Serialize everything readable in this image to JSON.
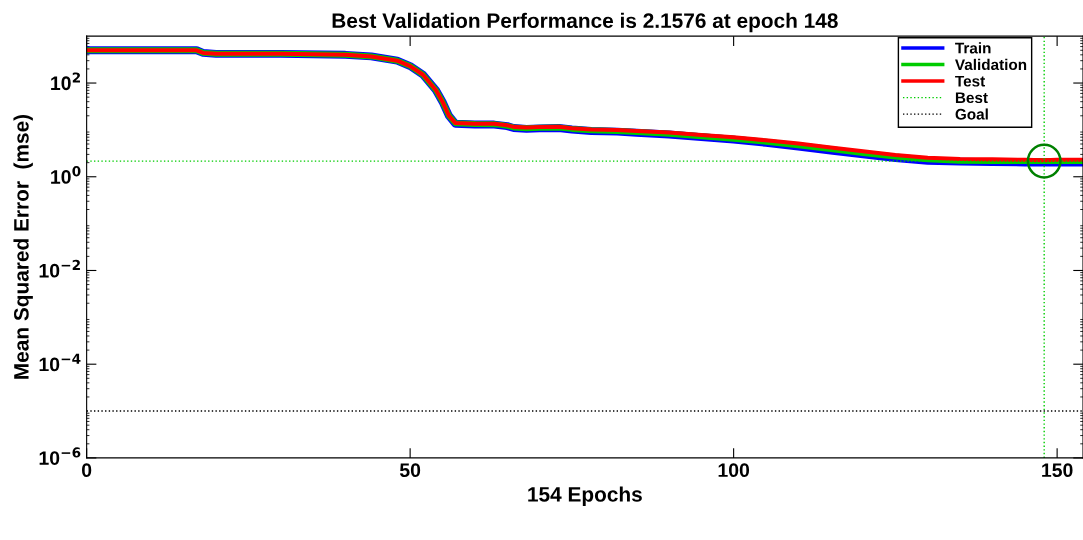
{
  "chart_data": {
    "type": "line",
    "title": "Best Validation Performance is 2.1576 at epoch 148",
    "xlabel": "154 Epochs",
    "ylabel": "Mean Squared Error  (mse)",
    "log": "y",
    "grid": false,
    "legend": "top right",
    "line_style": "solid",
    "marker": "none",
    "xlim": [
      0,
      154
    ],
    "ylim": [
      1e-06,
      1000
    ],
    "xticks": [
      0,
      50,
      100,
      150
    ],
    "yticks": [
      {
        "value": 1e-06,
        "label": "10$^{−6}$"
      },
      {
        "value": 0.0001,
        "label": "10$^{−4}$"
      },
      {
        "value": 0.01,
        "label": "10$^{−2}$"
      },
      {
        "value": 1,
        "label": "10$^{0}$"
      },
      {
        "value": 100,
        "label": "10$^{2}$"
      }
    ],
    "x": [
      0,
      17,
      18,
      20,
      30,
      40,
      44,
      48,
      50,
      52,
      54,
      55,
      56,
      57,
      60,
      63,
      64,
      65,
      66,
      68,
      70,
      73,
      75,
      78,
      82,
      85,
      90,
      95,
      100,
      105,
      110,
      115,
      120,
      125,
      130,
      135,
      140,
      145,
      148,
      150,
      154
    ],
    "series": [
      {
        "name": "Train",
        "color": "#0000ff",
        "values": [
          500,
          500,
          440,
          420,
          420,
          400,
          370,
          300,
          230,
          150,
          70,
          40,
          20,
          13.5,
          13,
          13,
          12.5,
          12,
          11,
          10.5,
          10.8,
          11,
          10.2,
          9.5,
          9.2,
          8.7,
          8,
          7,
          6.2,
          5.3,
          4.4,
          3.6,
          3,
          2.5,
          2.2,
          2.1,
          2.05,
          2.02,
          2.0,
          2.0,
          2.0
        ]
      },
      {
        "name": "Validation",
        "color": "#00cc00",
        "values": [
          500,
          500,
          440,
          420,
          420,
          400,
          370,
          300,
          230,
          150,
          70,
          40,
          20,
          13.8,
          13.3,
          13.2,
          12.8,
          12.2,
          11.3,
          10.8,
          11.1,
          11.3,
          10.5,
          9.8,
          9.5,
          9,
          8.3,
          7.3,
          6.5,
          5.6,
          4.7,
          3.9,
          3.2,
          2.7,
          2.35,
          2.2,
          2.17,
          2.16,
          2.1576,
          2.17,
          2.17
        ]
      },
      {
        "name": "Test",
        "color": "#ff0000",
        "values": [
          500,
          500,
          440,
          420,
          420,
          400,
          370,
          300,
          230,
          150,
          70,
          40,
          20,
          14,
          13.6,
          13.5,
          13,
          12.5,
          11.6,
          11.2,
          11.5,
          11.7,
          10.9,
          10.2,
          10,
          9.5,
          8.8,
          7.8,
          7,
          6,
          5.1,
          4.2,
          3.5,
          2.9,
          2.55,
          2.4,
          2.35,
          2.3,
          2.25,
          2.3,
          2.3
        ]
      },
      {
        "type": "scatter",
        "color": "#008000",
        "marker": "circle",
        "x": [
          148
        ],
        "values": [
          2.1576
        ]
      }
    ],
    "ref_lines": [
      {
        "axis": "y",
        "value": 2.1576,
        "label": "Best",
        "color": "#00cc00",
        "line_style": "dotted"
      },
      {
        "axis": "x",
        "value": 148,
        "color": "#00cc00",
        "line_style": "dotted"
      },
      {
        "axis": "y",
        "value": 1e-05,
        "label": "Goal",
        "color": "#000000",
        "line_style": "dotted"
      }
    ]
  }
}
